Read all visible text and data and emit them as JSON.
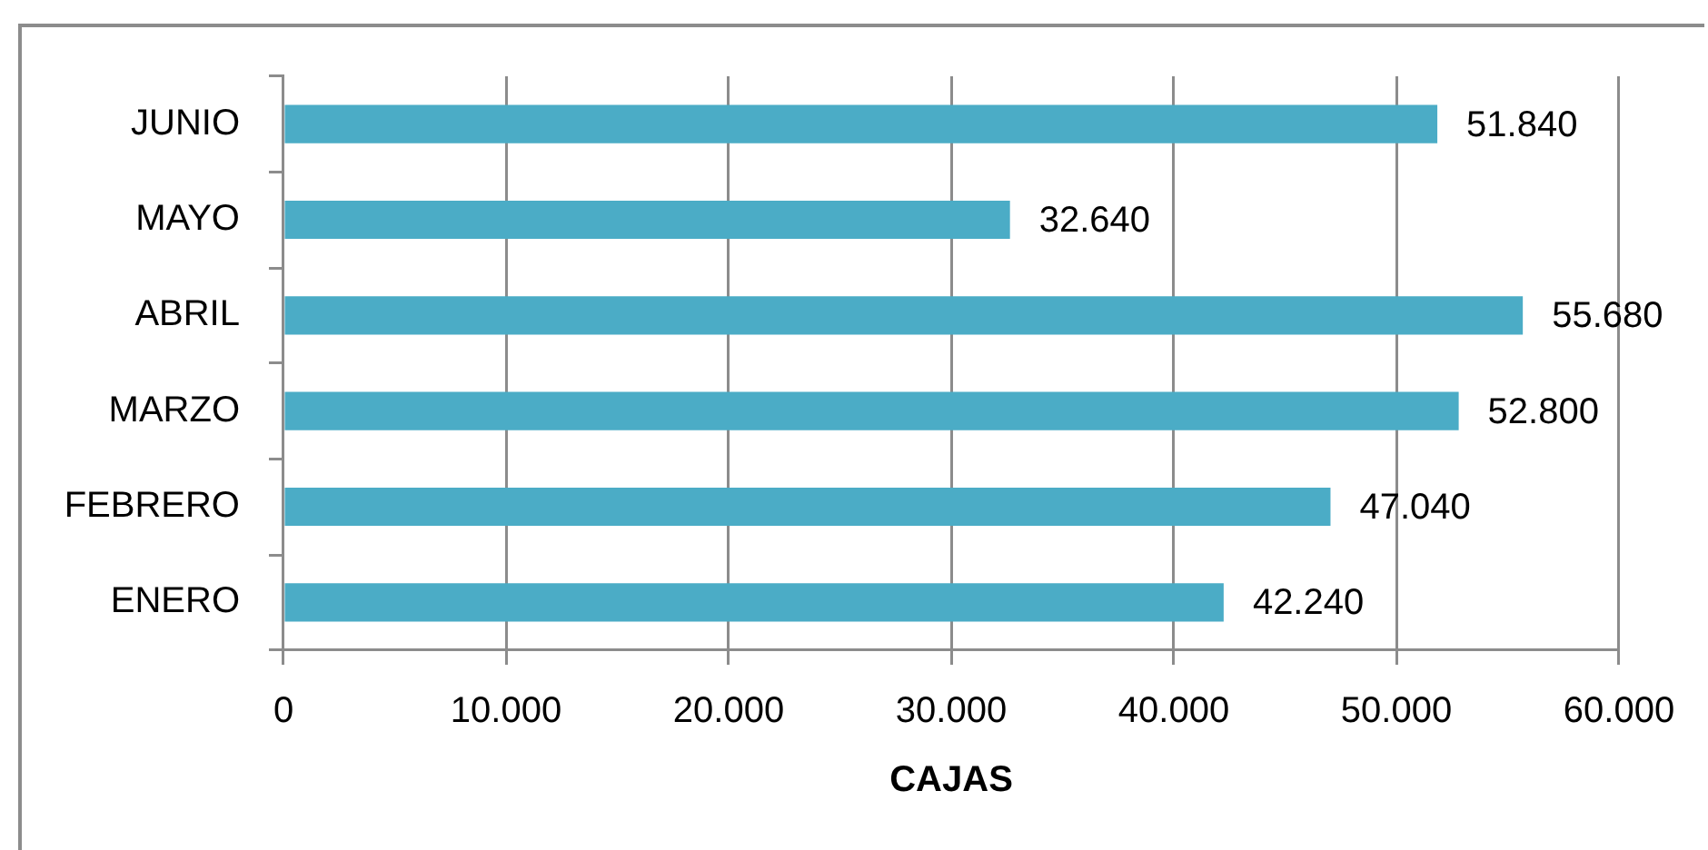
{
  "chart_data": {
    "type": "bar",
    "orientation": "horizontal",
    "categories": [
      "JUNIO",
      "MAYO",
      "ABRIL",
      "MARZO",
      "FEBRERO",
      "ENERO"
    ],
    "values": [
      51840,
      32640,
      55680,
      52800,
      47040,
      42240
    ],
    "value_labels": [
      "51.840",
      "32.640",
      "55.680",
      "52.800",
      "47.040",
      "42.240"
    ],
    "color": "#4bacc6",
    "xlabel": "CAJAS",
    "xlim": [
      0,
      60000
    ],
    "xticks": [
      0,
      {
        "value": 10000,
        "label": "10.000"
      },
      {
        "value": 20000,
        "label": "20.000"
      },
      {
        "value": 30000,
        "label": "30.000"
      },
      {
        "value": 40000,
        "label": "40.000"
      },
      {
        "value": 50000,
        "label": "50.000"
      },
      {
        "value": 60000,
        "label": "60.000"
      }
    ],
    "grid": "x"
  }
}
